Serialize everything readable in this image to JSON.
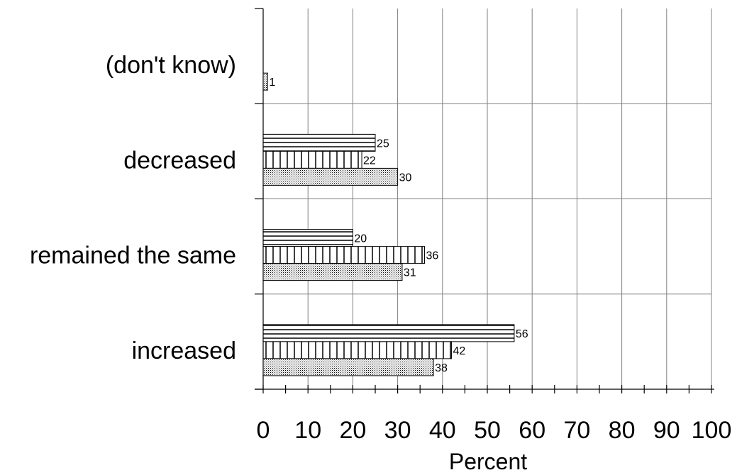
{
  "chart_data": {
    "type": "bar",
    "orientation": "horizontal",
    "categories": [
      "(don't know)",
      "decreased",
      "remained the same",
      "increased"
    ],
    "series": [
      {
        "values": [
          null,
          25,
          20,
          56
        ],
        "pattern": "horizontal-lines"
      },
      {
        "values": [
          null,
          22,
          36,
          42
        ],
        "pattern": "vertical-lines"
      },
      {
        "values": [
          1,
          30,
          31,
          38
        ],
        "pattern": "dots"
      }
    ],
    "xlabel": "Percent",
    "ylabel": "",
    "title": "",
    "xlim": [
      0,
      100
    ],
    "xticks": [
      "0",
      "10",
      "20",
      "30",
      "40",
      "50",
      "60",
      "70",
      "80",
      "90",
      "100"
    ],
    "grid": true,
    "legend": "none",
    "colors": {
      "grid": "#808080",
      "axis": "#000000",
      "bar_fill": "#ffffff",
      "bar_stroke": "#000000"
    }
  }
}
